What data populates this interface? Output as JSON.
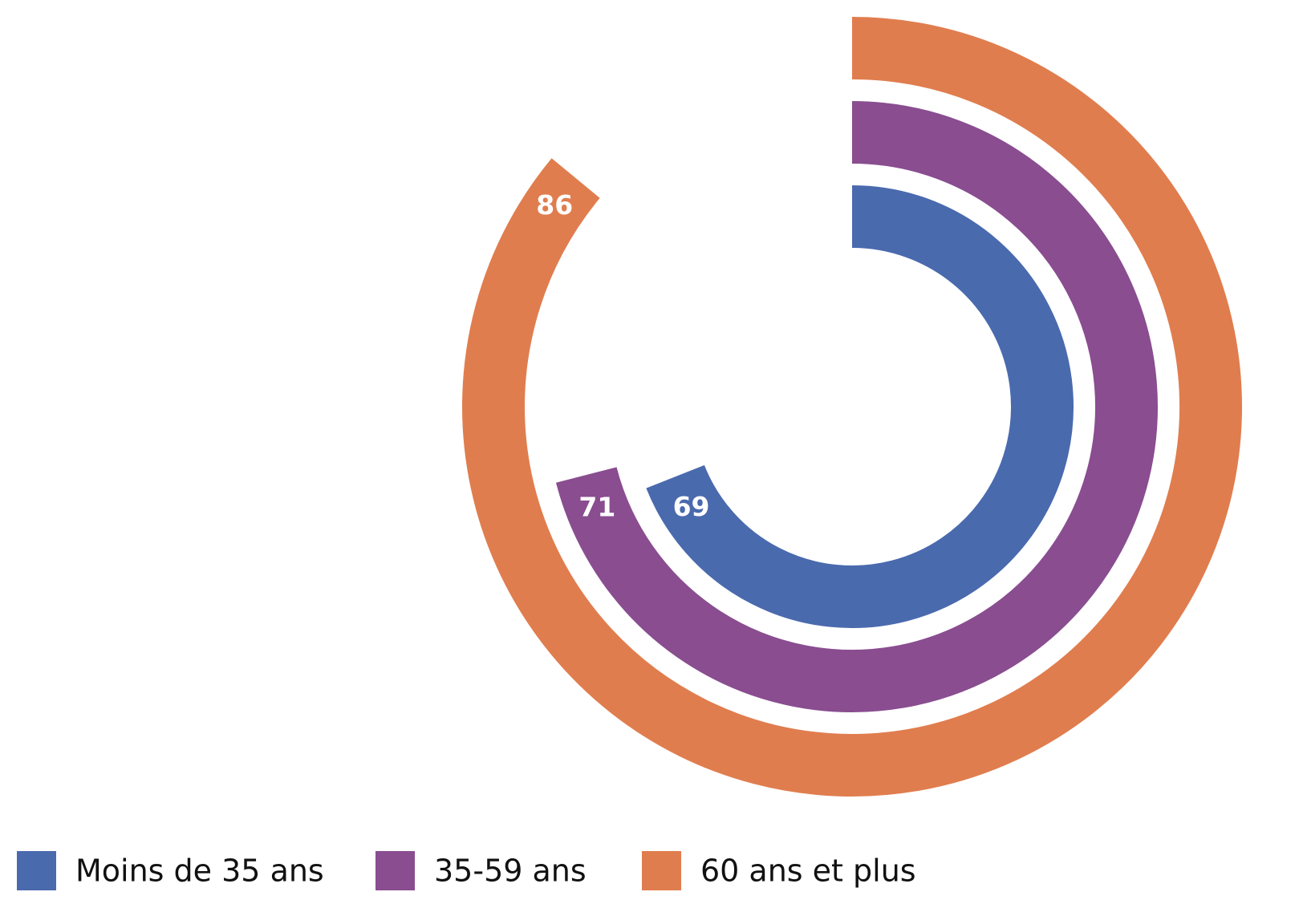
{
  "chart_data": {
    "type": "radial_bar",
    "ylim": [
      0,
      100
    ],
    "series": [
      {
        "name": "Moins de 35 ans",
        "color": "#4a6aae",
        "values": [
          69
        ]
      },
      {
        "name": "35-59 ans",
        "color": "#894d90",
        "values": [
          71
        ]
      },
      {
        "name": "60 ans et plus",
        "color": "#e07d4e",
        "values": [
          86
        ]
      }
    ]
  }
}
